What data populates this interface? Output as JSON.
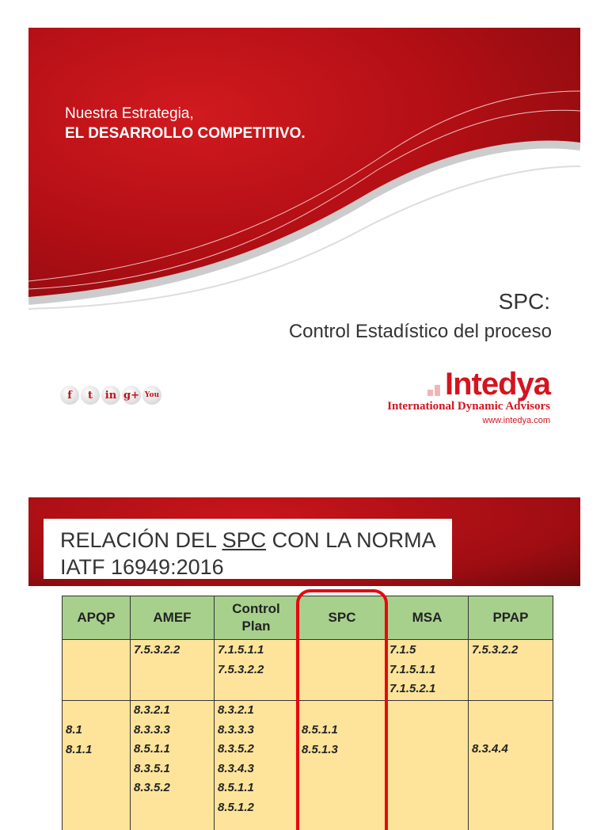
{
  "slide1": {
    "tagline_line1": "Nuestra Estrategia,",
    "tagline_line2": "EL DESARROLLO COMPETITIVO.",
    "title": "SPC:",
    "subtitle": "Control Estadístico del proceso",
    "social_icons": [
      {
        "icon": "facebook-icon",
        "glyph": "f"
      },
      {
        "icon": "twitter-icon",
        "glyph": "t"
      },
      {
        "icon": "linkedin-icon",
        "glyph": "in"
      },
      {
        "icon": "google-plus-icon",
        "glyph": "g+"
      },
      {
        "icon": "youtube-icon",
        "glyph": "You"
      }
    ],
    "logo": {
      "name": "Intedya",
      "full_name": "International Dynamic Advisors",
      "url": "www.intedya.com"
    },
    "accent": "#c8151b"
  },
  "slide2": {
    "title_pre": "RELACIÓN DEL ",
    "title_spc": "SPC",
    "title_post": " CON LA NORMA",
    "title_line2": "IATF 16949:2016",
    "table": {
      "headers": [
        "APQP",
        "AMEF",
        "Control Plan",
        "SPC",
        "MSA",
        "PPAP"
      ],
      "rows": [
        [
          "",
          "7.5.3.2.2",
          "7.1.5.1.1\n7.5.3.2.2",
          "",
          "7.1.5\n7.1.5.1.1\n7.1.5.2.1",
          "7.5.3.2.2"
        ],
        [
          "8.1\n8.1.1",
          "8.3.2.1\n8.3.3.3\n8.5.1.1\n8.3.5.1\n8.3.5.2",
          "8.3.2.1\n8.3.3.3\n8.3.5.2\n8.3.4.3\n8.5.1.1\n8.5.1.2",
          "8.5.1.1\n8.5.1.3",
          "",
          "8.3.4.4"
        ]
      ],
      "header_color": "#a8d08d",
      "cell_color": "#fde49a",
      "highlight_color": "#e8080e"
    }
  }
}
